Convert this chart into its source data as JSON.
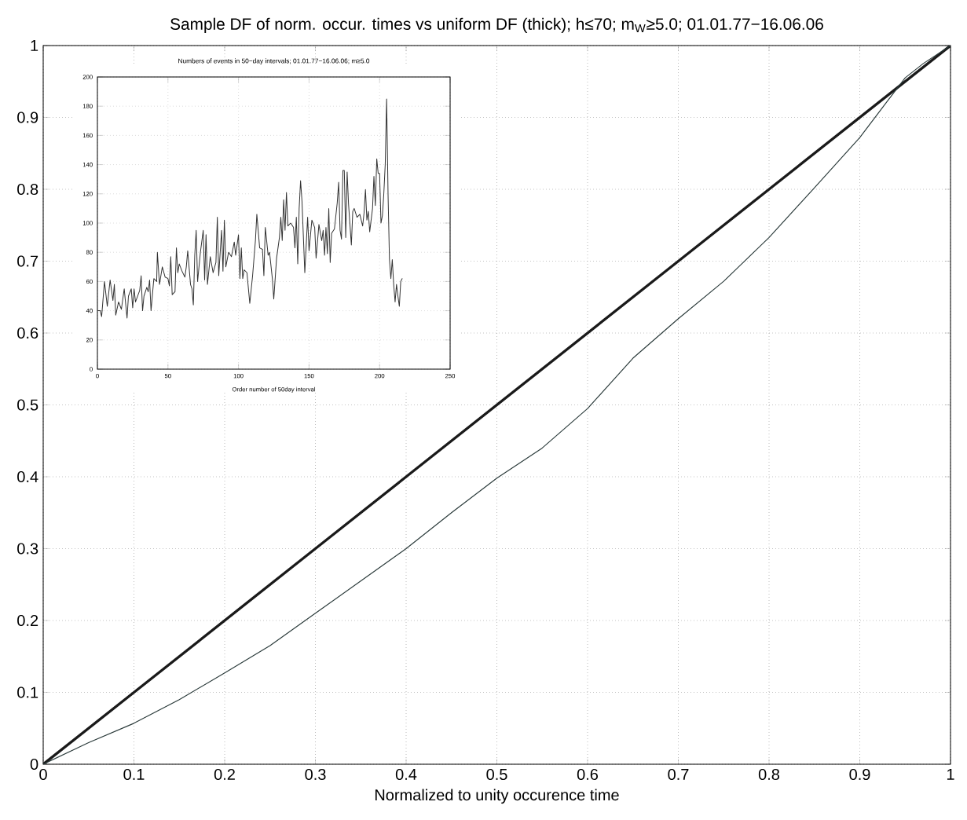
{
  "chart_data": [
    {
      "type": "line",
      "title": "Sample DF of norm. occur. times vs uniform DF (thick); h≤70; m$_{W}$≥5.0; 01.01.77−16.06.06",
      "xlabel": "Normalized to unity occurence time",
      "xlim": [
        0,
        1
      ],
      "ylim": [
        0,
        1
      ],
      "xticks": [
        0,
        0.1,
        0.2,
        0.3,
        0.4,
        0.5,
        0.6,
        0.7,
        0.8,
        0.9,
        1
      ],
      "yticks": [
        0,
        0.1,
        0.2,
        0.3,
        0.4,
        0.5,
        0.6,
        0.7,
        0.8,
        0.9,
        1
      ],
      "grid": true,
      "series": [
        {
          "color": "#1a1a1a",
          "x": [
            0,
            0.1,
            0.2,
            0.3,
            0.4,
            0.5,
            0.6,
            0.7,
            0.8,
            0.9,
            1
          ],
          "values": [
            0,
            0.1,
            0.2,
            0.3,
            0.4,
            0.5,
            0.6,
            0.7,
            0.8,
            0.9,
            1
          ]
        },
        {
          "color": "#2a3a3a",
          "x": [
            0,
            0.05,
            0.1,
            0.15,
            0.2,
            0.25,
            0.3,
            0.35,
            0.4,
            0.45,
            0.5,
            0.55,
            0.6,
            0.65,
            0.7,
            0.75,
            0.8,
            0.85,
            0.9,
            0.93,
            0.95,
            0.97,
            1
          ],
          "values": [
            0,
            0.03,
            0.057,
            0.09,
            0.127,
            0.165,
            0.21,
            0.255,
            0.3,
            0.35,
            0.398,
            0.44,
            0.495,
            0.565,
            0.62,
            0.672,
            0.733,
            0.802,
            0.872,
            0.922,
            0.955,
            0.975,
            1
          ]
        }
      ]
    },
    {
      "type": "line",
      "title": "Numbers of events in 50−day intervals; 01.01.77−16.06.06; m≥5.0",
      "xlabel": "Order number of 50day interval",
      "xlim": [
        0,
        250
      ],
      "ylim": [
        0,
        200
      ],
      "xticks": [
        0,
        50,
        100,
        150,
        200,
        250
      ],
      "yticks": [
        0,
        20,
        40,
        60,
        80,
        100,
        120,
        140,
        160,
        180,
        200
      ],
      "grid": true,
      "series": [
        {
          "color": "#333333",
          "x": [
            0,
            2,
            3,
            5,
            7,
            9,
            11,
            12,
            13,
            15,
            17,
            19,
            21,
            22,
            24,
            25,
            26,
            27,
            30,
            31,
            32,
            33,
            35,
            36,
            37,
            38,
            40,
            42,
            42.5,
            44,
            46,
            48,
            50,
            51,
            52,
            53,
            55,
            56,
            57,
            58,
            60,
            62,
            63,
            64,
            66,
            67,
            68,
            69,
            70,
            71,
            73,
            75,
            76,
            77,
            78,
            80,
            82,
            84,
            85,
            86,
            88,
            89,
            90,
            91,
            93,
            95,
            97,
            98,
            100,
            101,
            102,
            103,
            104,
            106,
            108,
            110,
            112,
            113,
            115,
            117,
            118,
            119,
            121,
            122,
            124,
            125,
            127,
            129,
            130,
            131,
            132,
            133,
            134,
            135,
            137,
            139,
            140,
            141,
            142,
            143,
            144,
            145,
            147,
            149,
            150,
            152,
            154,
            155,
            157,
            159,
            160,
            161,
            162,
            163,
            164,
            165,
            166,
            168,
            170,
            171,
            172,
            173,
            174,
            175,
            176,
            177,
            178,
            180,
            181,
            182,
            184,
            186,
            188,
            189,
            190,
            191,
            192,
            193,
            195,
            196,
            197,
            198,
            199,
            200,
            201,
            202,
            203,
            204,
            205,
            206,
            207,
            208,
            209,
            210,
            211,
            212,
            213,
            214,
            215,
            216
          ],
          "values": [
            40,
            40,
            36,
            60,
            43,
            61,
            47,
            58,
            37,
            46,
            41,
            55,
            35,
            50,
            55,
            42,
            55,
            46,
            54,
            64,
            40,
            50,
            56,
            53,
            61,
            40,
            62,
            60,
            80,
            58,
            70,
            63,
            62,
            57,
            77,
            51,
            53,
            83,
            66,
            72,
            67,
            63,
            70,
            81,
            58,
            55,
            44,
            78,
            95,
            60,
            80,
            95,
            61,
            92,
            58,
            77,
            66,
            73,
            104,
            64,
            95,
            67,
            102,
            70,
            80,
            77,
            87,
            78,
            92,
            62,
            83,
            62,
            68,
            66,
            45,
            64,
            88,
            106,
            83,
            82,
            64,
            97,
            78,
            80,
            62,
            48,
            76,
            90,
            104,
            88,
            116,
            95,
            121,
            98,
            100,
            97,
            83,
            104,
            72,
            110,
            129,
            115,
            66,
            104,
            81,
            102,
            97,
            76,
            99,
            88,
            95,
            78,
            97,
            79,
            110,
            73,
            93,
            96,
            114,
            128,
            95,
            89,
            136,
            136,
            90,
            135,
            113,
            85,
            108,
            110,
            104,
            106,
            98,
            107,
            123,
            102,
            108,
            94,
            110,
            132,
            112,
            144,
            134,
            134,
            100,
            105,
            120,
            140,
            185,
            120,
            75,
            62,
            75,
            58,
            46,
            58,
            50,
            43,
            60,
            62
          ]
        }
      ]
    }
  ]
}
